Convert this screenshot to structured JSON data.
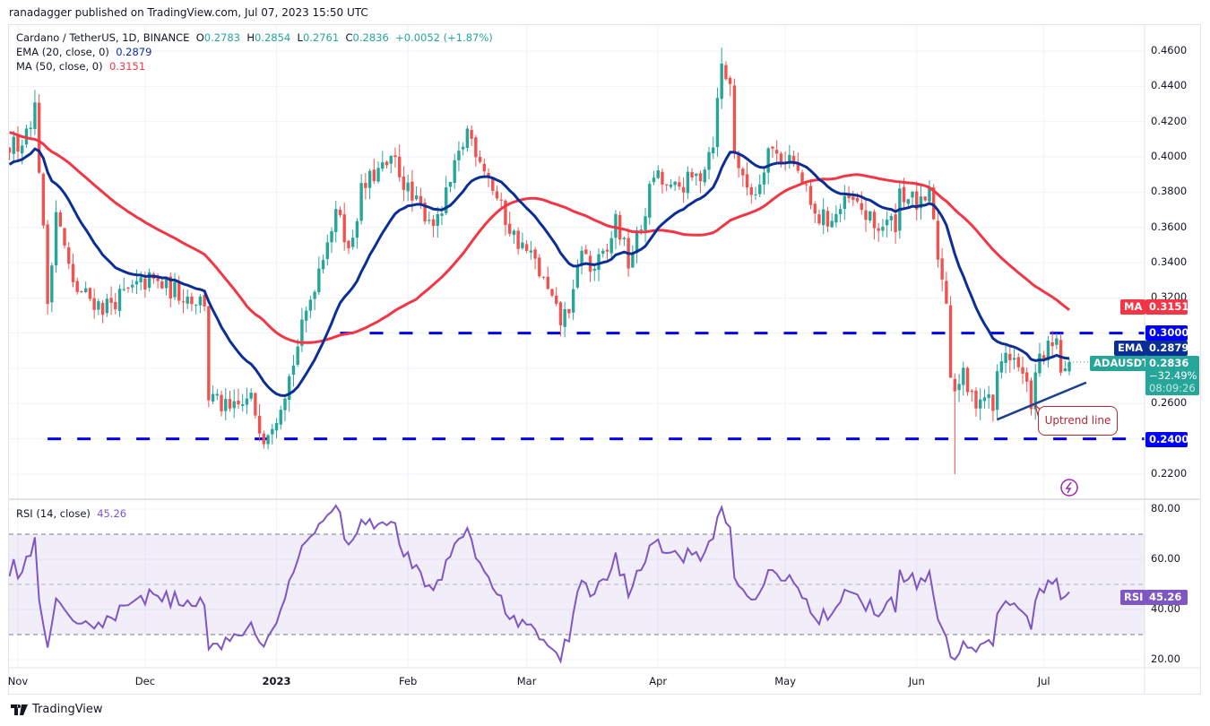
{
  "publisher": "ranadagger published on TradingView.com, Jul 07, 2023 15:50 UTC",
  "legend": {
    "symbol": "Cardano / TetherUS, 1D, BINANCE",
    "o_label": "O",
    "o": "0.2783",
    "h_label": "H",
    "h": "0.2854",
    "l_label": "L",
    "l": "0.2761",
    "c_label": "C",
    "c": "0.2836",
    "change": "+0.0052 (+1.87%)",
    "ema_label": "EMA (20, close, 0)",
    "ema_value": "0.2879",
    "ma_label": "MA (50, close, 0)",
    "ma_value": "0.3151",
    "rsi_label": "RSI (14, close)",
    "rsi_value": "45.26"
  },
  "tags": {
    "ma_name": "MA",
    "ma_value": "0.3151",
    "level_high": "0.3000",
    "ema_name": "EMA",
    "ema_value": "0.2879",
    "symbol_name": "ADAUSDT",
    "price": "0.2836",
    "change_pct": "−32.49%",
    "countdown": "08:09:26",
    "level_low": "0.2400",
    "rsi_name": "RSI",
    "rsi_value": "45.26"
  },
  "annotation": {
    "uptrend_label": "Uptrend line"
  },
  "footer": {
    "brand": "TradingView"
  },
  "colors": {
    "up": "#26a69a",
    "down": "#ef5350",
    "ema": "#0c2f96",
    "ma": "#f23645",
    "level": "#0000ff",
    "rsi": "#7e57c2",
    "trendline": "#1e3f8f"
  },
  "chart_data": {
    "type": "candlestick",
    "title": "Cardano / TetherUS, 1D, BINANCE",
    "price_axis_ticks": [
      "0.4600",
      "0.4400",
      "0.4200",
      "0.4000",
      "0.3800",
      "0.3600",
      "0.3400",
      "0.3200",
      "0.2600",
      "0.2200"
    ],
    "price_tick_values": [
      0.46,
      0.44,
      0.42,
      0.4,
      0.38,
      0.36,
      0.34,
      0.32,
      0.26,
      0.22
    ],
    "ylim": [
      0.21,
      0.47
    ],
    "rsi_axis_ticks": [
      "80.00",
      "60.00",
      "40.00",
      "20.00"
    ],
    "rsi_tick_values": [
      80,
      60,
      40,
      20
    ],
    "rsi_bands": [
      70,
      50,
      30
    ],
    "x_labels": [
      {
        "label": "Nov",
        "day": 0
      },
      {
        "label": "Dec",
        "day": 30
      },
      {
        "label": "2023",
        "day": 61,
        "bold": true
      },
      {
        "label": "Feb",
        "day": 92
      },
      {
        "label": "Mar",
        "day": 120
      },
      {
        "label": "Apr",
        "day": 151
      },
      {
        "label": "May",
        "day": 181
      },
      {
        "label": "Jun",
        "day": 212
      },
      {
        "label": "Jul",
        "day": 242
      }
    ],
    "day_origin": "2022-11-01",
    "first_visible_day": -2,
    "price_keypoints": [
      [
        -55,
        0.45
      ],
      [
        -35,
        0.43
      ],
      [
        -20,
        0.4
      ],
      [
        -8,
        0.375
      ],
      [
        -3,
        0.4
      ],
      [
        -2,
        0.405
      ],
      [
        1,
        0.41
      ],
      [
        4,
        0.428
      ],
      [
        5,
        0.395
      ],
      [
        7,
        0.318
      ],
      [
        9,
        0.37
      ],
      [
        13,
        0.326
      ],
      [
        20,
        0.315
      ],
      [
        31,
        0.33
      ],
      [
        41,
        0.32
      ],
      [
        44,
        0.318
      ],
      [
        45,
        0.264
      ],
      [
        50,
        0.255
      ],
      [
        55,
        0.262
      ],
      [
        58,
        0.242
      ],
      [
        61,
        0.255
      ],
      [
        64,
        0.275
      ],
      [
        69,
        0.32
      ],
      [
        73,
        0.355
      ],
      [
        76,
        0.37
      ],
      [
        78,
        0.345
      ],
      [
        81,
        0.38
      ],
      [
        84,
        0.39
      ],
      [
        89,
        0.397
      ],
      [
        93,
        0.375
      ],
      [
        99,
        0.362
      ],
      [
        106,
        0.415
      ],
      [
        110,
        0.395
      ],
      [
        114,
        0.37
      ],
      [
        117,
        0.355
      ],
      [
        122,
        0.34
      ],
      [
        128,
        0.306
      ],
      [
        131,
        0.32
      ],
      [
        133,
        0.35
      ],
      [
        135,
        0.335
      ],
      [
        139,
        0.345
      ],
      [
        141,
        0.365
      ],
      [
        144,
        0.34
      ],
      [
        147,
        0.36
      ],
      [
        150,
        0.39
      ],
      [
        154,
        0.38
      ],
      [
        161,
        0.39
      ],
      [
        164,
        0.41
      ],
      [
        166,
        0.452
      ],
      [
        168,
        0.44
      ],
      [
        169,
        0.405
      ],
      [
        171,
        0.385
      ],
      [
        174,
        0.38
      ],
      [
        177,
        0.405
      ],
      [
        180,
        0.4
      ],
      [
        182,
        0.4
      ],
      [
        185,
        0.385
      ],
      [
        188,
        0.365
      ],
      [
        192,
        0.365
      ],
      [
        196,
        0.375
      ],
      [
        199,
        0.37
      ],
      [
        202,
        0.36
      ],
      [
        207,
        0.363
      ],
      [
        208,
        0.381
      ],
      [
        211,
        0.375
      ],
      [
        214,
        0.37
      ],
      [
        215,
        0.383
      ],
      [
        216,
        0.36
      ],
      [
        218,
        0.33
      ],
      [
        219,
        0.32
      ],
      [
        220,
        0.278
      ],
      [
        221,
        0.27
      ],
      [
        223,
        0.275
      ],
      [
        225,
        0.262
      ],
      [
        228,
        0.265
      ],
      [
        230,
        0.258
      ],
      [
        231,
        0.275
      ],
      [
        233,
        0.29
      ],
      [
        235,
        0.285
      ],
      [
        237,
        0.275
      ],
      [
        239,
        0.262
      ],
      [
        241,
        0.285
      ],
      [
        243,
        0.29
      ],
      [
        245,
        0.292
      ],
      [
        246,
        0.28
      ],
      [
        247,
        0.278
      ],
      [
        248,
        0.2836
      ]
    ],
    "last_candle": {
      "day": 248,
      "open": 0.2783,
      "high": 0.2854,
      "low": 0.2761,
      "close": 0.2836
    },
    "notable_wicks": [
      {
        "day": 221,
        "low": 0.22
      },
      {
        "day": 166,
        "high": 0.462
      },
      {
        "day": 4,
        "high": 0.438
      }
    ],
    "horizontal_levels": [
      {
        "price": 0.3,
        "from_day": 76
      },
      {
        "price": 0.24,
        "from_day": 7
      }
    ],
    "uptrend_line": {
      "from": {
        "day": 231,
        "price": 0.251
      },
      "to": {
        "day": 252,
        "price": 0.272
      }
    },
    "indicators": {
      "ema_period": 20,
      "ma_period": 50,
      "rsi_period": 14
    }
  }
}
